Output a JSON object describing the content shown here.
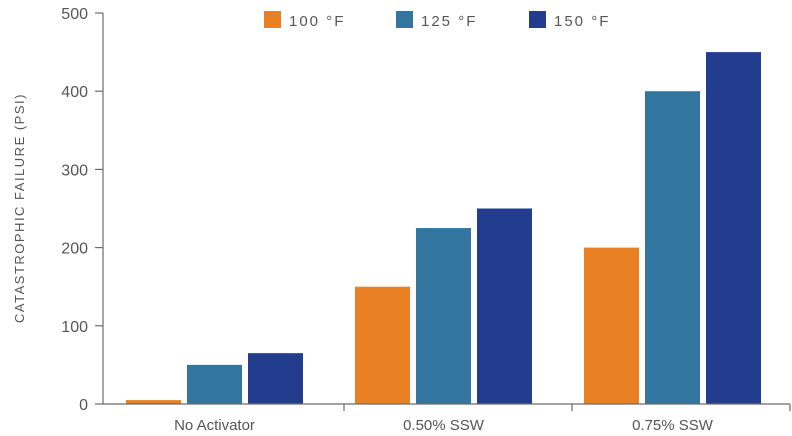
{
  "chart_data": {
    "type": "bar",
    "title": "",
    "xlabel": "",
    "ylabel": "CATASTROPHIC FAILURE (PSI)",
    "ylim": [
      0,
      500
    ],
    "yticks": [
      0,
      100,
      200,
      300,
      400,
      500
    ],
    "categories": [
      "No Activator",
      "0.50% SSW",
      "0.75% SSW"
    ],
    "series": [
      {
        "name": "100 °F",
        "color": "#E98124",
        "values": [
          5,
          150,
          200
        ]
      },
      {
        "name": "125 °F",
        "color": "#3276A0",
        "values": [
          50,
          225,
          400
        ]
      },
      {
        "name": "150 °F",
        "color": "#223C8E",
        "values": [
          65,
          250,
          450
        ]
      }
    ],
    "legend_position": "top-center",
    "grid": false
  }
}
